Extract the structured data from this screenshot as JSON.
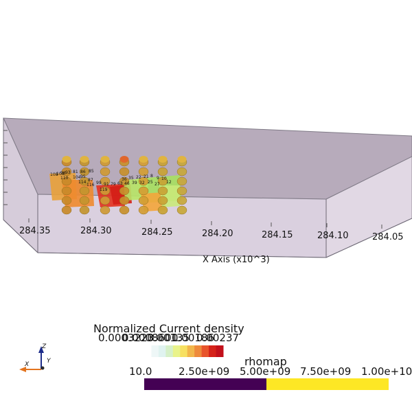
{
  "scene": {
    "x_axis": {
      "title": "X Axis (x10^3)",
      "tick_labels": [
        "284.35",
        "284.30",
        "284.25",
        "284.20",
        "284.15",
        "284.10",
        "284.05"
      ]
    },
    "electrodes": [
      "108",
      "103",
      "98",
      "93",
      "81",
      "86",
      "85",
      "110",
      "104",
      "95",
      "114",
      "87",
      "116",
      "99",
      "91",
      "79",
      "63",
      "46",
      "39",
      "32",
      "36",
      "35",
      "22",
      "21",
      "8",
      "9",
      "10",
      "25",
      "27",
      "12",
      "119"
    ]
  },
  "colorbars": {
    "current_density": {
      "title": "Normalized Current density",
      "tick_labels": [
        "0.0003223",
        "0.0008601",
        "0.00135",
        "0.00186",
        "0.00237"
      ],
      "colors": [
        "#ffffff",
        "#eef7f7",
        "#e0f3f0",
        "#d6f0c8",
        "#e9f38a",
        "#f7e061",
        "#f2b64b",
        "#ee8a3b",
        "#e8542b",
        "#d52219",
        "#c2101a"
      ]
    },
    "rhomap": {
      "title": "rhomap",
      "tick_labels": [
        "10.0",
        "2.50e+09",
        "5.00e+09",
        "7.50e+09",
        "1.00e+10"
      ],
      "colors": [
        "#440154",
        "#fde725"
      ]
    }
  },
  "orientation": {
    "x_label": "X",
    "y_label": "Y",
    "z_label": "Z"
  }
}
